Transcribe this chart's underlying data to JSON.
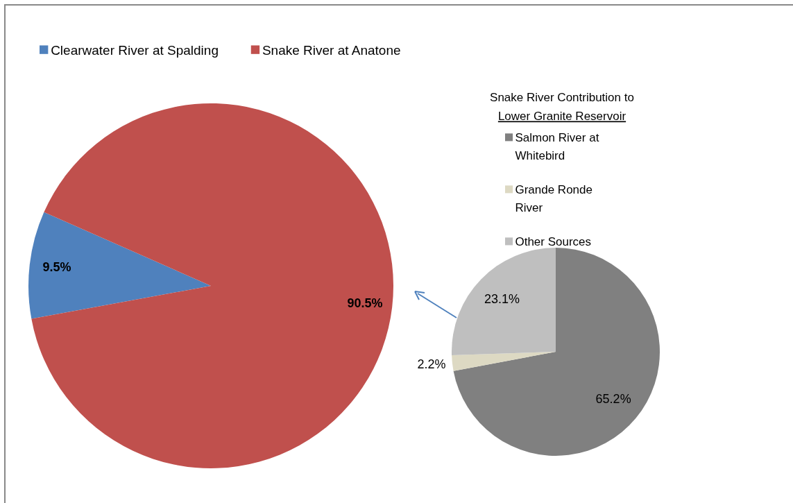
{
  "chart_data": [
    {
      "type": "pie",
      "categories": [
        "Clearwater River at Spalding",
        "Snake River at Anatone"
      ],
      "values": [
        9.5,
        90.5
      ],
      "colors": [
        "#4f81bd",
        "#c0504d"
      ],
      "value_labels": [
        "9.5%",
        "90.5%"
      ],
      "legend": "top left"
    },
    {
      "type": "pie",
      "title": "Snake River Contribution  to\nLower Granite Reservoir",
      "categories": [
        "Salmon River at Whitebird",
        "Grande Ronde River",
        "Other Sources"
      ],
      "values": [
        65.2,
        2.2,
        23.1
      ],
      "colors": [
        "#808080",
        "#ddd9c3",
        "#bfbfbf"
      ],
      "value_labels": [
        "65.2%",
        "2.2%",
        "23.1%"
      ],
      "legend": "top right"
    }
  ]
}
